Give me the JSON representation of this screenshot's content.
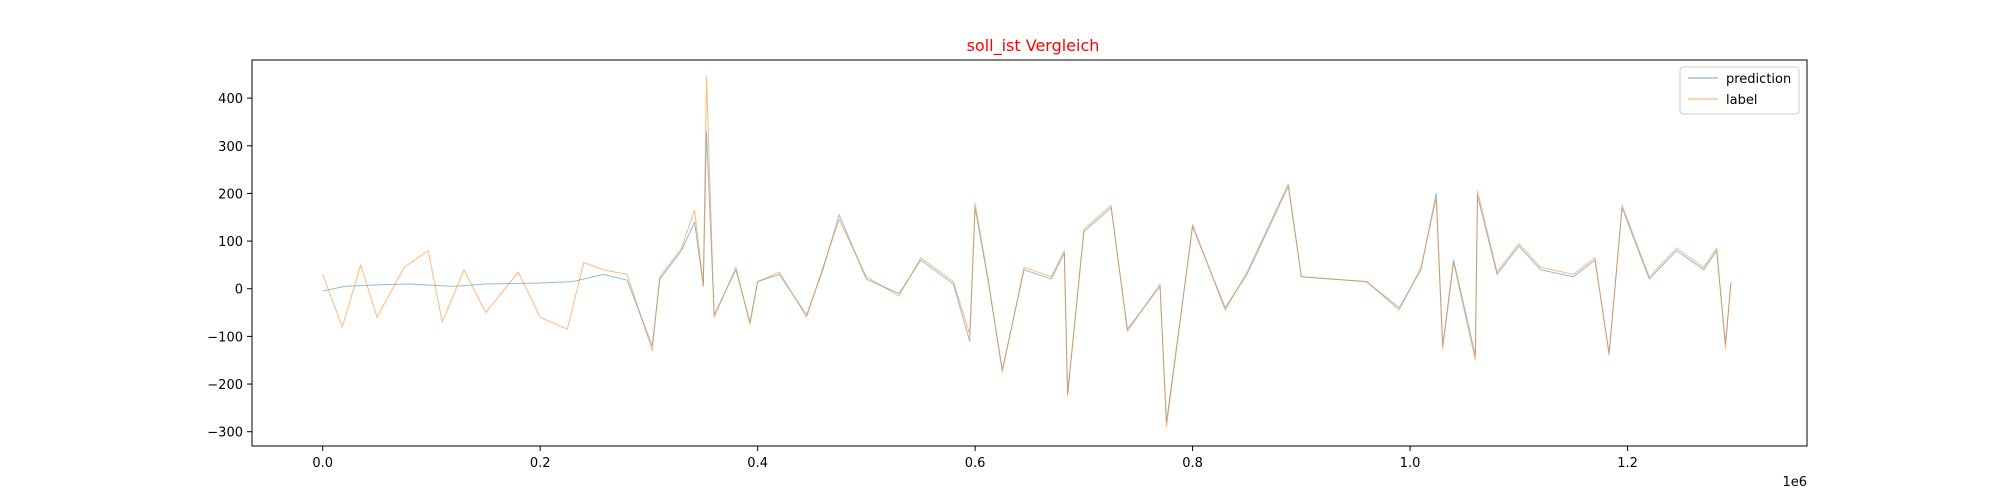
{
  "chart_data": {
    "type": "line",
    "title": "soll_ist Vergleich",
    "title_color": "#ff0000",
    "xlabel": "",
    "ylabel": "",
    "x_offset_label": "1e6",
    "xlim": [
      -0.065,
      1.365
    ],
    "ylim": [
      -330,
      480
    ],
    "x_ticks": [
      0.0,
      0.2,
      0.4,
      0.6,
      0.8,
      1.0,
      1.2
    ],
    "x_tick_labels": [
      "0.0",
      "0.2",
      "0.4",
      "0.6",
      "0.8",
      "1.0",
      "1.2"
    ],
    "y_ticks": [
      -300,
      -200,
      -100,
      0,
      100,
      200,
      300,
      400
    ],
    "y_tick_labels": [
      "−300",
      "−200",
      "−100",
      "0",
      "100",
      "200",
      "300",
      "400"
    ],
    "grid": false,
    "legend_position": "top-right",
    "series": [
      {
        "name": "prediction",
        "color": "#1f77b4",
        "x": [
          0.0,
          0.02,
          0.05,
          0.08,
          0.12,
          0.15,
          0.2,
          0.23,
          0.258,
          0.28,
          0.303,
          0.31,
          0.33,
          0.342,
          0.35,
          0.353,
          0.36,
          0.38,
          0.393,
          0.4,
          0.42,
          0.445,
          0.46,
          0.475,
          0.5,
          0.53,
          0.55,
          0.58,
          0.595,
          0.6,
          0.612,
          0.625,
          0.645,
          0.67,
          0.682,
          0.685,
          0.7,
          0.725,
          0.74,
          0.77,
          0.776,
          0.8,
          0.83,
          0.85,
          0.888,
          0.9,
          0.93,
          0.96,
          0.99,
          1.01,
          1.024,
          1.03,
          1.04,
          1.06,
          1.062,
          1.08,
          1.1,
          1.12,
          1.15,
          1.17,
          1.183,
          1.195,
          1.22,
          1.245,
          1.27,
          1.282,
          1.29,
          1.295
        ],
        "y": [
          -5,
          5,
          8,
          10,
          5,
          10,
          12,
          15,
          30,
          18,
          -120,
          20,
          80,
          140,
          5,
          330,
          -55,
          40,
          -70,
          15,
          30,
          -55,
          40,
          155,
          20,
          -10,
          60,
          10,
          -110,
          170,
          15,
          -170,
          40,
          20,
          75,
          -220,
          120,
          170,
          -85,
          5,
          -280,
          130,
          -40,
          30,
          215,
          25,
          20,
          15,
          -40,
          40,
          200,
          -120,
          60,
          -140,
          195,
          30,
          90,
          40,
          25,
          60,
          -135,
          170,
          20,
          80,
          40,
          80,
          -115,
          10
        ]
      },
      {
        "name": "label",
        "color": "#ff7f0e",
        "x": [
          0.0,
          0.018,
          0.035,
          0.05,
          0.075,
          0.097,
          0.11,
          0.13,
          0.15,
          0.18,
          0.2,
          0.225,
          0.24,
          0.258,
          0.28,
          0.303,
          0.31,
          0.33,
          0.342,
          0.35,
          0.353,
          0.36,
          0.38,
          0.393,
          0.4,
          0.42,
          0.445,
          0.46,
          0.475,
          0.5,
          0.53,
          0.55,
          0.58,
          0.595,
          0.6,
          0.612,
          0.625,
          0.645,
          0.67,
          0.682,
          0.685,
          0.7,
          0.725,
          0.74,
          0.77,
          0.776,
          0.8,
          0.83,
          0.85,
          0.888,
          0.9,
          0.93,
          0.96,
          0.99,
          1.01,
          1.024,
          1.03,
          1.04,
          1.06,
          1.062,
          1.08,
          1.1,
          1.12,
          1.15,
          1.17,
          1.183,
          1.195,
          1.22,
          1.245,
          1.27,
          1.282,
          1.29,
          1.295
        ],
        "y": [
          30,
          -80,
          50,
          -60,
          45,
          80,
          -70,
          40,
          -50,
          35,
          -60,
          -85,
          55,
          40,
          30,
          -130,
          25,
          85,
          165,
          10,
          445,
          -60,
          45,
          -75,
          15,
          35,
          -60,
          45,
          145,
          25,
          -15,
          65,
          15,
          -95,
          180,
          20,
          -175,
          45,
          25,
          80,
          -225,
          125,
          175,
          -90,
          10,
          -290,
          135,
          -45,
          35,
          220,
          25,
          20,
          15,
          -45,
          45,
          190,
          -125,
          55,
          -150,
          205,
          35,
          95,
          45,
          30,
          65,
          -140,
          175,
          25,
          85,
          45,
          85,
          -125,
          15
        ]
      }
    ]
  }
}
